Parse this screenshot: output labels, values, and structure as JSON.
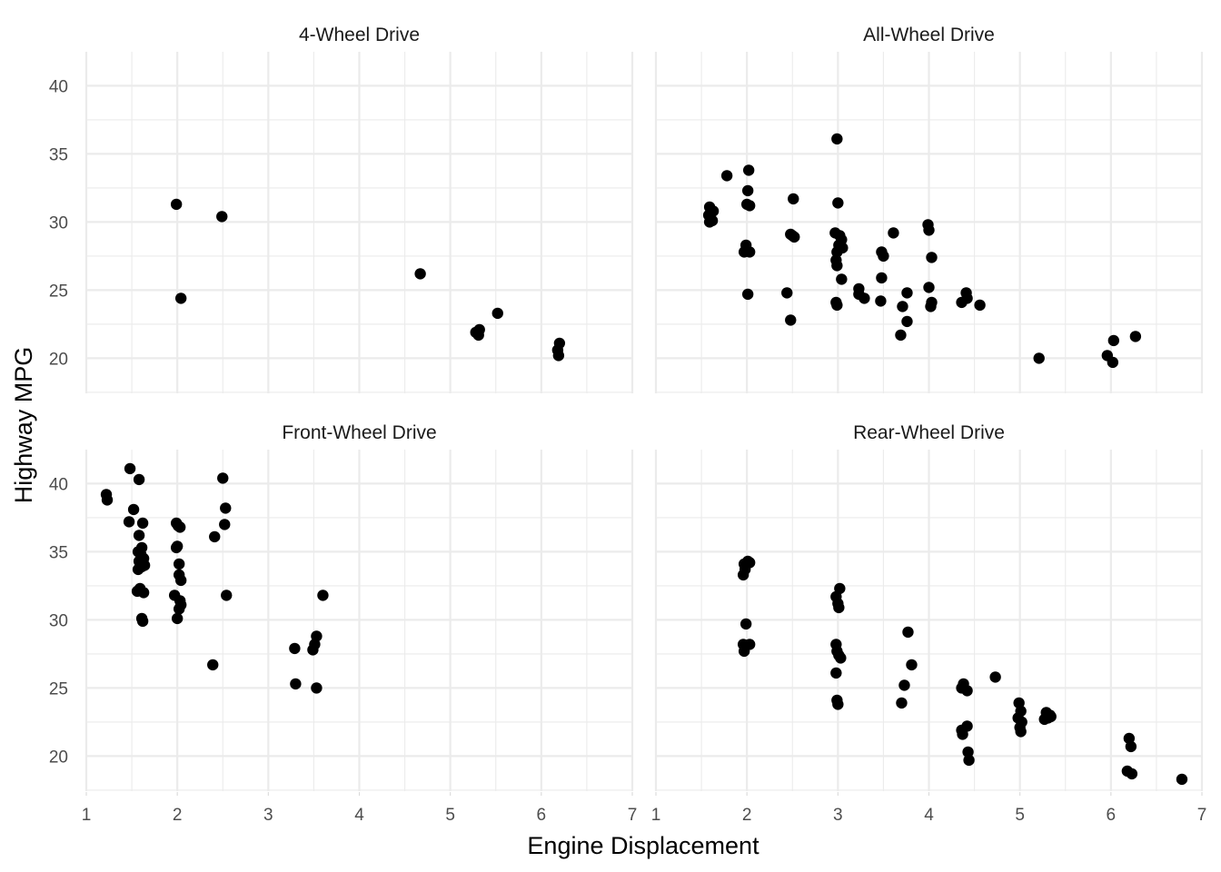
{
  "chart_data": {
    "type": "scatter",
    "title": "",
    "xlabel": "Engine Displacement",
    "ylabel": "Highway MPG",
    "xlim": [
      1,
      7
    ],
    "ylim": [
      17.5,
      42
    ],
    "x_ticks": [
      1,
      2,
      3,
      4,
      5,
      6,
      7
    ],
    "y_ticks": [
      20,
      25,
      30,
      35,
      40
    ],
    "grid": true,
    "legend": "none",
    "point_color": "#000000",
    "panels": [
      {
        "title": "4-Wheel Drive",
        "points": [
          [
            1.99,
            31.3
          ],
          [
            2.49,
            30.4
          ],
          [
            2.04,
            24.4
          ],
          [
            4.67,
            26.2
          ],
          [
            5.52,
            23.3
          ],
          [
            5.28,
            21.9
          ],
          [
            5.32,
            22.1
          ],
          [
            5.31,
            21.7
          ],
          [
            6.2,
            21.1
          ],
          [
            6.18,
            20.6
          ],
          [
            6.19,
            20.2
          ]
        ]
      },
      {
        "title": "All-Wheel Drive",
        "points": [
          [
            2.99,
            36.1
          ],
          [
            1.78,
            33.4
          ],
          [
            2.02,
            33.8
          ],
          [
            2.01,
            32.3
          ],
          [
            2.51,
            31.7
          ],
          [
            3.0,
            31.4
          ],
          [
            1.59,
            31.1
          ],
          [
            1.63,
            30.8
          ],
          [
            1.58,
            30.5
          ],
          [
            1.62,
            30.1
          ],
          [
            1.59,
            30.0
          ],
          [
            2.0,
            31.3
          ],
          [
            2.03,
            31.2
          ],
          [
            2.48,
            29.1
          ],
          [
            2.52,
            28.9
          ],
          [
            2.5,
            29.0
          ],
          [
            2.97,
            29.2
          ],
          [
            3.02,
            29.0
          ],
          [
            3.04,
            28.7
          ],
          [
            3.01,
            28.3
          ],
          [
            3.05,
            28.1
          ],
          [
            2.99,
            27.8
          ],
          [
            2.98,
            27.2
          ],
          [
            2.99,
            26.8
          ],
          [
            1.99,
            28.3
          ],
          [
            1.97,
            27.8
          ],
          [
            2.03,
            27.8
          ],
          [
            3.04,
            25.8
          ],
          [
            3.61,
            29.2
          ],
          [
            3.48,
            27.8
          ],
          [
            3.5,
            27.5
          ],
          [
            3.99,
            29.8
          ],
          [
            4.0,
            29.4
          ],
          [
            4.03,
            27.4
          ],
          [
            3.23,
            25.1
          ],
          [
            3.23,
            24.7
          ],
          [
            3.29,
            24.4
          ],
          [
            3.48,
            25.9
          ],
          [
            2.01,
            24.7
          ],
          [
            2.44,
            24.8
          ],
          [
            2.48,
            22.8
          ],
          [
            2.98,
            24.1
          ],
          [
            2.99,
            23.9
          ],
          [
            3.47,
            24.2
          ],
          [
            3.76,
            24.8
          ],
          [
            3.71,
            23.8
          ],
          [
            3.76,
            22.7
          ],
          [
            3.69,
            21.7
          ],
          [
            4.0,
            25.2
          ],
          [
            4.03,
            24.1
          ],
          [
            4.02,
            23.8
          ],
          [
            4.41,
            24.8
          ],
          [
            4.42,
            24.4
          ],
          [
            4.36,
            24.1
          ],
          [
            4.56,
            23.9
          ],
          [
            5.21,
            20.0
          ],
          [
            5.96,
            20.2
          ],
          [
            6.03,
            21.3
          ],
          [
            6.02,
            19.7
          ],
          [
            6.27,
            21.6
          ]
        ]
      },
      {
        "title": "Front-Wheel Drive",
        "points": [
          [
            1.22,
            39.2
          ],
          [
            1.23,
            38.8
          ],
          [
            1.48,
            41.1
          ],
          [
            1.58,
            40.3
          ],
          [
            1.52,
            38.1
          ],
          [
            1.47,
            37.2
          ],
          [
            1.62,
            37.1
          ],
          [
            1.58,
            36.2
          ],
          [
            1.57,
            35.0
          ],
          [
            1.61,
            35.3
          ],
          [
            1.6,
            34.8
          ],
          [
            1.63,
            34.5
          ],
          [
            1.58,
            34.3
          ],
          [
            1.64,
            34.0
          ],
          [
            1.57,
            33.7
          ],
          [
            1.61,
            33.9
          ],
          [
            1.56,
            32.1
          ],
          [
            1.59,
            32.3
          ],
          [
            1.63,
            32.0
          ],
          [
            1.61,
            30.1
          ],
          [
            1.62,
            29.9
          ],
          [
            1.99,
            37.1
          ],
          [
            2.03,
            36.8
          ],
          [
            2.01,
            36.9
          ],
          [
            1.99,
            35.3
          ],
          [
            2.0,
            35.4
          ],
          [
            2.02,
            34.1
          ],
          [
            2.02,
            33.3
          ],
          [
            2.04,
            32.9
          ],
          [
            1.97,
            31.8
          ],
          [
            2.03,
            31.4
          ],
          [
            2.04,
            31.1
          ],
          [
            2.02,
            30.8
          ],
          [
            2.0,
            30.1
          ],
          [
            2.5,
            40.4
          ],
          [
            2.53,
            38.2
          ],
          [
            2.52,
            37.0
          ],
          [
            2.41,
            36.1
          ],
          [
            2.54,
            31.8
          ],
          [
            2.39,
            26.7
          ],
          [
            3.29,
            27.9
          ],
          [
            3.3,
            25.3
          ],
          [
            3.49,
            27.8
          ],
          [
            3.51,
            28.2
          ],
          [
            3.53,
            28.8
          ],
          [
            3.53,
            25.0
          ],
          [
            3.6,
            31.8
          ]
        ]
      },
      {
        "title": "Rear-Wheel Drive",
        "points": [
          [
            1.97,
            34.1
          ],
          [
            2.01,
            34.3
          ],
          [
            2.03,
            34.2
          ],
          [
            1.98,
            33.7
          ],
          [
            1.96,
            33.3
          ],
          [
            1.99,
            29.7
          ],
          [
            1.96,
            28.2
          ],
          [
            2.03,
            28.2
          ],
          [
            1.97,
            27.7
          ],
          [
            3.02,
            32.3
          ],
          [
            2.98,
            31.7
          ],
          [
            3.0,
            31.2
          ],
          [
            3.01,
            30.9
          ],
          [
            2.98,
            28.2
          ],
          [
            2.99,
            27.7
          ],
          [
            3.01,
            27.4
          ],
          [
            3.03,
            27.2
          ],
          [
            2.98,
            26.1
          ],
          [
            2.99,
            24.1
          ],
          [
            3.0,
            23.8
          ],
          [
            3.77,
            29.1
          ],
          [
            3.81,
            26.7
          ],
          [
            3.73,
            25.2
          ],
          [
            3.7,
            23.9
          ],
          [
            4.38,
            25.3
          ],
          [
            4.36,
            25.0
          ],
          [
            4.42,
            24.8
          ],
          [
            4.73,
            25.8
          ],
          [
            4.42,
            22.2
          ],
          [
            4.36,
            21.9
          ],
          [
            4.37,
            21.6
          ],
          [
            4.43,
            20.3
          ],
          [
            4.44,
            19.7
          ],
          [
            4.99,
            23.9
          ],
          [
            5.01,
            23.3
          ],
          [
            4.98,
            22.8
          ],
          [
            5.02,
            22.5
          ],
          [
            5.0,
            22.1
          ],
          [
            5.01,
            21.8
          ],
          [
            5.29,
            23.2
          ],
          [
            5.33,
            23.0
          ],
          [
            5.31,
            22.8
          ],
          [
            5.27,
            22.7
          ],
          [
            5.34,
            22.9
          ],
          [
            6.2,
            21.3
          ],
          [
            6.22,
            20.7
          ],
          [
            6.18,
            18.9
          ],
          [
            6.23,
            18.7
          ],
          [
            6.78,
            18.3
          ]
        ]
      }
    ]
  }
}
